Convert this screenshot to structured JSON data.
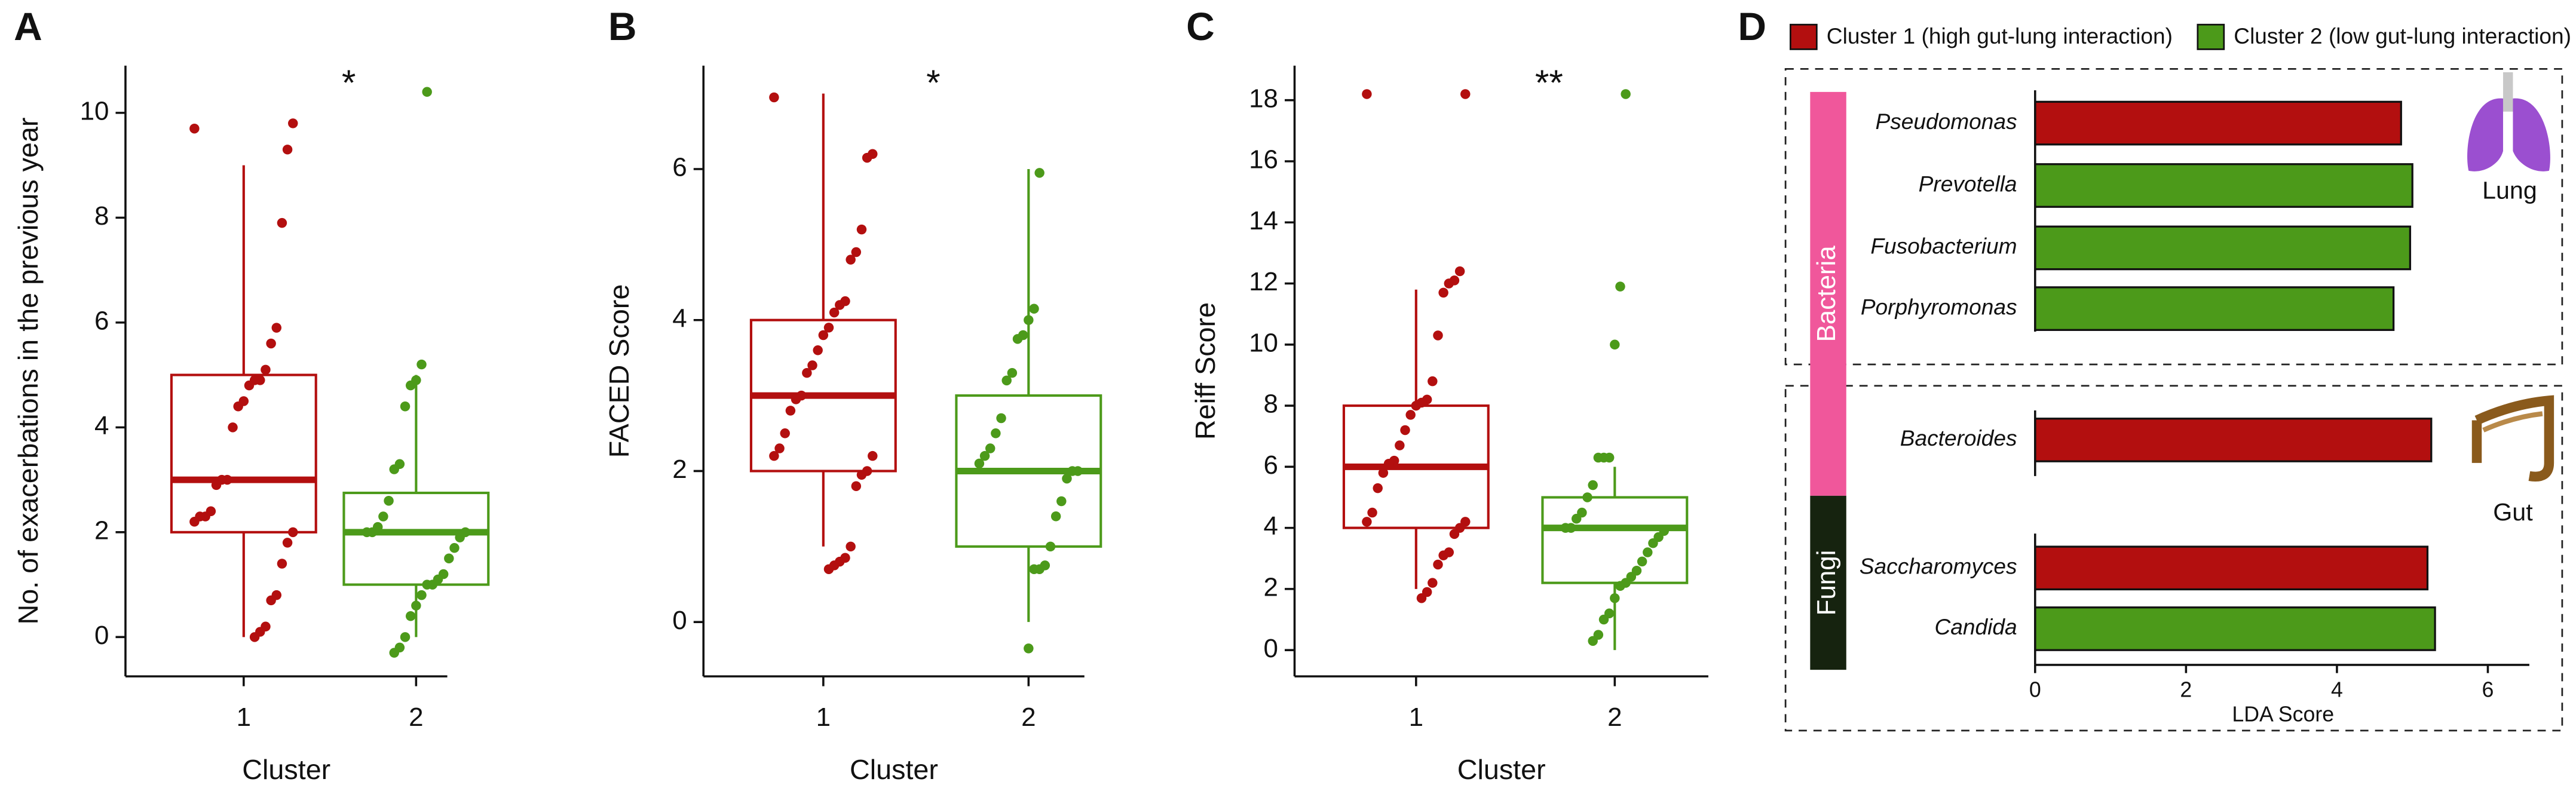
{
  "chart_data": [
    {
      "type": "box",
      "panel_label": "A",
      "ylabel": "No. of exacerbations in the previous year",
      "xlabel": "Cluster",
      "significance": "*",
      "categories": [
        "1",
        "2"
      ],
      "ylim": [
        -0.75,
        10.9
      ],
      "yticks": [
        0,
        2,
        4,
        6,
        8,
        10
      ],
      "boxes": [
        {
          "color": "#b30f0f",
          "q1": 2,
          "median": 3,
          "q3": 5,
          "whisker_low": 0,
          "whisker_high": 9,
          "points": [
            9.7,
            9.8,
            9.3,
            7.9,
            5.9,
            5.6,
            5.1,
            4.9,
            4.9,
            4.8,
            4.5,
            4.4,
            4.0,
            3.0,
            3.0,
            2.9,
            2.4,
            2.3,
            2.3,
            2.2,
            2.0,
            1.8,
            1.4,
            0.8,
            0.7,
            0.2,
            0.1,
            0.0
          ]
        },
        {
          "color": "#4c9a1a",
          "q1": 1,
          "median": 2,
          "q3": 2.75,
          "whisker_low": 0,
          "whisker_high": 5,
          "points": [
            10.4,
            5.2,
            4.9,
            4.8,
            4.4,
            3.3,
            3.2,
            2.6,
            2.3,
            2.1,
            2.0,
            2.0,
            2.0,
            1.9,
            1.7,
            1.5,
            1.2,
            1.1,
            1.0,
            1.0,
            0.8,
            0.6,
            0.4,
            0,
            -0.2,
            -0.3
          ]
        }
      ]
    },
    {
      "type": "box",
      "panel_label": "B",
      "ylabel": "FACED Score",
      "xlabel": "Cluster",
      "significance": "*",
      "categories": [
        "1",
        "2"
      ],
      "ylim": [
        -0.72,
        7.37
      ],
      "yticks": [
        0,
        2,
        4,
        6
      ],
      "boxes": [
        {
          "color": "#b30f0f",
          "q1": 2,
          "median": 3,
          "q3": 4,
          "whisker_low": 1,
          "whisker_high": 7,
          "points": [
            6.95,
            6.2,
            6.15,
            5.2,
            4.9,
            4.8,
            4.25,
            4.2,
            4.1,
            3.9,
            3.8,
            3.6,
            3.4,
            3.3,
            3.0,
            2.95,
            2.8,
            2.5,
            2.3,
            2.2,
            2.2,
            2.0,
            1.95,
            1.8,
            1.0,
            0.85,
            0.8,
            0.75,
            0.7
          ]
        },
        {
          "color": "#4c9a1a",
          "q1": 1,
          "median": 2,
          "q3": 3,
          "whisker_low": 0,
          "whisker_high": 6,
          "points": [
            5.95,
            4.15,
            4.0,
            3.8,
            3.75,
            3.3,
            3.2,
            2.7,
            2.5,
            2.3,
            2.2,
            2.1,
            2.0,
            2.0,
            1.9,
            1.6,
            1.4,
            1.0,
            0.75,
            0.7,
            0.7,
            -0.35
          ]
        }
      ]
    },
    {
      "type": "box",
      "panel_label": "C",
      "ylabel": "Reiff Score",
      "xlabel": "Cluster",
      "significance": "**",
      "categories": [
        "1",
        "2"
      ],
      "ylim": [
        -0.86,
        19.13
      ],
      "yticks": [
        0,
        2,
        4,
        6,
        8,
        10,
        12,
        14,
        16,
        18
      ],
      "boxes": [
        {
          "color": "#b30f0f",
          "q1": 4,
          "median": 6,
          "q3": 8,
          "whisker_low": 2,
          "whisker_high": 11.8,
          "points": [
            18.2,
            18.2,
            12.4,
            12.1,
            12.0,
            11.7,
            10.3,
            8.8,
            8.2,
            8.1,
            8.0,
            7.7,
            7.2,
            6.7,
            6.2,
            6.1,
            5.8,
            5.3,
            4.5,
            4.2,
            4.2,
            4.0,
            3.8,
            3.2,
            3.1,
            2.8,
            2.2,
            1.9,
            1.7
          ]
        },
        {
          "color": "#4c9a1a",
          "q1": 2.2,
          "median": 4,
          "q3": 5,
          "whisker_low": 0,
          "whisker_high": 6,
          "points": [
            18.2,
            11.9,
            10.0,
            6.3,
            6.3,
            6.3,
            5.4,
            5.0,
            4.5,
            4.3,
            4.0,
            4.0,
            3.9,
            3.7,
            3.5,
            3.2,
            2.9,
            2.6,
            2.4,
            2.2,
            2.1,
            1.7,
            1.2,
            1.0,
            0.5,
            0.3
          ]
        }
      ]
    },
    {
      "type": "hbar",
      "panel_label": "D",
      "xlabel": "LDA Score",
      "categories": [
        "Pseudomonas",
        "Prevotella",
        "Fusobacterium",
        "Porphyromonas",
        "Bacteroides",
        "Saccharomyces",
        "Candida"
      ],
      "series": [
        {
          "name": "Cluster 1 (high gut-lung interaction)",
          "color": "#b30f0f",
          "values": [
            4.85,
            null,
            null,
            null,
            5.25,
            5.2,
            null
          ]
        },
        {
          "name": "Cluster 2 (low gut-lung interaction)",
          "color": "#4c9a1a",
          "values": [
            null,
            5.0,
            4.97,
            4.75,
            null,
            null,
            5.3
          ]
        }
      ],
      "xlim": [
        0,
        6.55
      ],
      "xticks": [
        0,
        2,
        4,
        6
      ],
      "groups": [
        {
          "label": "Bacteria",
          "color": "#f0579b"
        },
        {
          "label": "Fungi",
          "color": "#16230f"
        }
      ],
      "sites": [
        {
          "label": "Lung"
        },
        {
          "label": "Gut"
        }
      ]
    }
  ]
}
